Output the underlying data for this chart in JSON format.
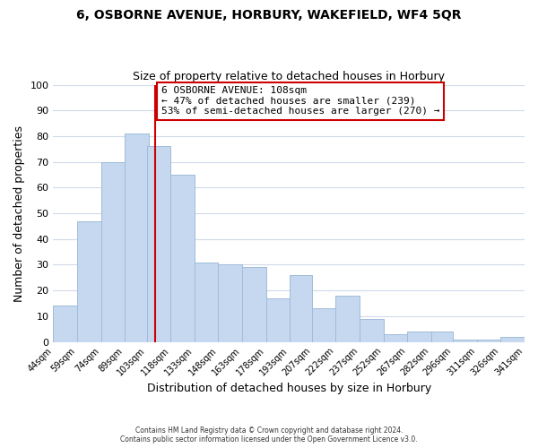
{
  "title_line1": "6, OSBORNE AVENUE, HORBURY, WAKEFIELD, WF4 5QR",
  "title_line2": "Size of property relative to detached houses in Horbury",
  "xlabel": "Distribution of detached houses by size in Horbury",
  "ylabel": "Number of detached properties",
  "bar_left_edges": [
    44,
    59,
    74,
    89,
    103,
    118,
    133,
    148,
    163,
    178,
    193,
    207,
    222,
    237,
    252,
    267,
    282,
    296,
    311,
    326
  ],
  "bar_heights": [
    14,
    47,
    70,
    81,
    76,
    65,
    31,
    30,
    29,
    17,
    26,
    13,
    18,
    9,
    3,
    4,
    4,
    1,
    1,
    2
  ],
  "bar_widths": [
    15,
    15,
    15,
    15,
    15,
    15,
    15,
    15,
    15,
    15,
    14,
    15,
    15,
    15,
    15,
    15,
    14,
    15,
    15,
    15
  ],
  "bin_labels": [
    "44sqm",
    "59sqm",
    "74sqm",
    "89sqm",
    "103sqm",
    "118sqm",
    "133sqm",
    "148sqm",
    "163sqm",
    "178sqm",
    "193sqm",
    "207sqm",
    "222sqm",
    "237sqm",
    "252sqm",
    "267sqm",
    "282sqm",
    "296sqm",
    "311sqm",
    "326sqm",
    "341sqm"
  ],
  "bar_color": "#c5d8f0",
  "bar_edge_color": "#a0bcd8",
  "vline_x": 108,
  "vline_color": "#cc0000",
  "ylim": [
    0,
    100
  ],
  "yticks": [
    0,
    10,
    20,
    30,
    40,
    50,
    60,
    70,
    80,
    90,
    100
  ],
  "annotation_title": "6 OSBORNE AVENUE: 108sqm",
  "annotation_line1": "← 47% of detached houses are smaller (239)",
  "annotation_line2": "53% of semi-detached houses are larger (270) →",
  "annotation_box_color": "#ffffff",
  "annotation_box_edge": "#cc0000",
  "footer_line1": "Contains HM Land Registry data © Crown copyright and database right 2024.",
  "footer_line2": "Contains public sector information licensed under the Open Government Licence v3.0.",
  "background_color": "#ffffff",
  "grid_color": "#d0daea"
}
